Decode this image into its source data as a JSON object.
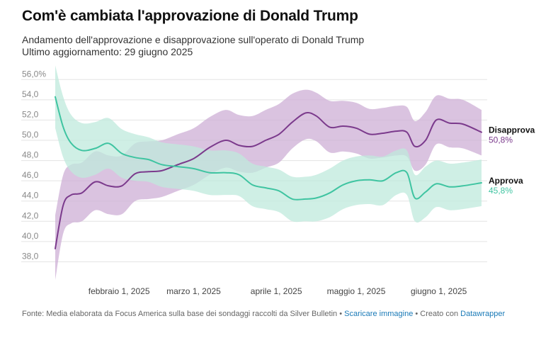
{
  "header": {
    "title": "Com'è cambiata l'approvazione di Donald Trump",
    "subtitle_line1": "Andamento dell'approvazione e disapprovazione sull'operato di Donald Trump",
    "subtitle_line2": "Ultimo aggiornamento: 29 giugno 2025"
  },
  "colors": {
    "approve": "#3fc4a1",
    "approve_band": "#bfe9dc",
    "disapprove": "#7b3a8c",
    "disapprove_band": "#cdafd6",
    "grid": "#e3e3e3"
  },
  "chart_data": {
    "type": "line",
    "title": "Com'è cambiata l'approvazione di Donald Trump",
    "x_tick_labels": [
      "febbraio 1, 2025",
      "marzo 1, 2025",
      "aprile 1, 2025",
      "maggio 1, 2025",
      "giugno 1, 2025"
    ],
    "x_tick_dates": [
      "2025-02-01",
      "2025-03-01",
      "2025-04-01",
      "2025-05-01",
      "2025-06-01"
    ],
    "x_range": [
      "2025-01-20",
      "2025-06-29"
    ],
    "y_tick_labels": [
      "38,0",
      "40,0",
      "42,0",
      "44,0",
      "46,0",
      "48,0",
      "50,0",
      "52,0",
      "54,0",
      "56,0%"
    ],
    "y_ticks": [
      38,
      40,
      42,
      44,
      46,
      48,
      50,
      52,
      54,
      56
    ],
    "ylim": [
      36,
      57
    ],
    "grid": true,
    "legend": "direct labels at right end of lines",
    "series": [
      {
        "name": "Disapprova",
        "color": "#7b3a8c",
        "last_value_label": "50,8%",
        "x": [
          "2025-01-20",
          "2025-01-23",
          "2025-01-26",
          "2025-01-30",
          "2025-02-04",
          "2025-02-09",
          "2025-02-14",
          "2025-02-19",
          "2025-02-24",
          "2025-03-01",
          "2025-03-07",
          "2025-03-13",
          "2025-03-19",
          "2025-03-25",
          "2025-03-30",
          "2025-04-04",
          "2025-04-09",
          "2025-04-14",
          "2025-04-19",
          "2025-04-24",
          "2025-04-28",
          "2025-05-03",
          "2025-05-08",
          "2025-05-13",
          "2025-05-18",
          "2025-05-23",
          "2025-05-28",
          "2025-06-01",
          "2025-06-04",
          "2025-06-08",
          "2025-06-12",
          "2025-06-17",
          "2025-06-22",
          "2025-06-29"
        ],
        "y": [
          39.3,
          43.6,
          44.6,
          44.8,
          45.9,
          45.5,
          45.5,
          46.7,
          46.9,
          47.0,
          47.6,
          48.2,
          49.3,
          50.0,
          49.5,
          49.4,
          50.0,
          50.6,
          51.8,
          52.7,
          52.4,
          51.3,
          51.4,
          51.2,
          50.6,
          50.7,
          50.9,
          50.8,
          49.4,
          50.0,
          52.0,
          51.7,
          51.6,
          50.8
        ],
        "upper": [
          42.6,
          46.6,
          47.6,
          47.8,
          48.9,
          48.5,
          48.5,
          49.7,
          49.9,
          50.0,
          50.6,
          51.2,
          52.3,
          53.0,
          52.5,
          52.4,
          53.0,
          53.6,
          54.6,
          55.0,
          54.7,
          53.9,
          53.9,
          53.7,
          53.1,
          53.2,
          53.4,
          53.3,
          51.9,
          52.8,
          54.4,
          54.1,
          54.0,
          53.0
        ],
        "lower": [
          36.2,
          40.8,
          41.8,
          42.0,
          43.1,
          42.7,
          42.7,
          44.0,
          44.2,
          44.4,
          45.0,
          45.6,
          46.6,
          47.3,
          46.9,
          46.8,
          47.3,
          47.8,
          49.2,
          50.1,
          49.9,
          48.8,
          48.9,
          48.7,
          48.2,
          48.3,
          48.5,
          48.4,
          47.0,
          47.6,
          49.6,
          49.3,
          49.2,
          48.5
        ]
      },
      {
        "name": "Approva",
        "color": "#3fc4a1",
        "last_value_label": "45,8%",
        "x": [
          "2025-01-20",
          "2025-01-23",
          "2025-01-26",
          "2025-01-30",
          "2025-02-04",
          "2025-02-09",
          "2025-02-14",
          "2025-02-19",
          "2025-02-24",
          "2025-03-01",
          "2025-03-07",
          "2025-03-13",
          "2025-03-19",
          "2025-03-25",
          "2025-03-30",
          "2025-04-04",
          "2025-04-09",
          "2025-04-14",
          "2025-04-19",
          "2025-04-24",
          "2025-04-28",
          "2025-05-03",
          "2025-05-08",
          "2025-05-13",
          "2025-05-18",
          "2025-05-23",
          "2025-05-28",
          "2025-06-01",
          "2025-06-04",
          "2025-06-08",
          "2025-06-12",
          "2025-06-17",
          "2025-06-22",
          "2025-06-29"
        ],
        "y": [
          54.3,
          51.3,
          49.7,
          49.0,
          49.2,
          49.7,
          48.7,
          48.3,
          48.1,
          47.6,
          47.4,
          47.2,
          46.8,
          46.8,
          46.6,
          45.6,
          45.3,
          45.0,
          44.2,
          44.2,
          44.3,
          44.8,
          45.6,
          46.0,
          46.1,
          46.0,
          46.8,
          46.8,
          44.3,
          44.9,
          45.7,
          45.4,
          45.5,
          45.8
        ],
        "upper": [
          57.4,
          54.3,
          52.5,
          51.7,
          51.8,
          52.2,
          51.1,
          50.6,
          50.3,
          49.8,
          49.6,
          49.4,
          49.0,
          49.0,
          48.7,
          47.7,
          47.4,
          47.1,
          46.4,
          46.4,
          46.6,
          47.2,
          48.0,
          48.4,
          48.5,
          48.4,
          49.0,
          49.0,
          46.6,
          47.4,
          48.0,
          47.7,
          47.8,
          48.1
        ],
        "lower": [
          51.2,
          48.3,
          46.9,
          46.3,
          46.6,
          47.2,
          46.3,
          46.0,
          45.9,
          45.4,
          45.2,
          45.0,
          44.6,
          44.6,
          44.5,
          43.5,
          43.2,
          42.9,
          42.0,
          42.0,
          42.0,
          42.4,
          43.2,
          43.6,
          43.7,
          43.6,
          44.6,
          44.6,
          42.0,
          42.4,
          43.4,
          43.1,
          43.2,
          43.5
        ]
      }
    ]
  },
  "footer": {
    "source": "Fonte: Media elaborata da Focus America sulla base dei sondaggi raccolti da Silver Bulletin",
    "sep1": " • ",
    "download_link": "Scaricare immagine",
    "sep2": " • Creato con ",
    "datawrapper_link": "Datawrapper"
  }
}
